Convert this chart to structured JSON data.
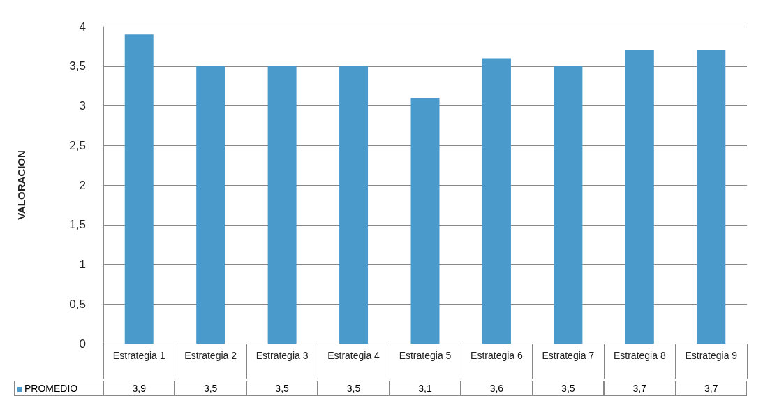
{
  "chart_data": {
    "type": "bar",
    "ylabel": "VALORACION",
    "categories": [
      "Estrategia 1",
      "Estrategia 2",
      "Estrategia 3",
      "Estrategia 4",
      "Estrategia 5",
      "Estrategia 6",
      "Estrategia 7",
      "Estrategia 8",
      "Estrategia 9"
    ],
    "series": [
      {
        "name": "PROMEDIO",
        "color": "#4a9acb",
        "values": [
          3.9,
          3.5,
          3.5,
          3.5,
          3.1,
          3.6,
          3.5,
          3.7,
          3.7
        ],
        "value_labels": [
          "3,9",
          "3,5",
          "3,5",
          "3,5",
          "3,1",
          "3,6",
          "3,5",
          "3,7",
          "3,7"
        ]
      }
    ],
    "ylim": [
      0,
      4
    ],
    "yticks": [
      0,
      {
        "value": 0.5,
        "label": "0,5"
      },
      1,
      {
        "value": 1.5,
        "label": "1,5"
      },
      2,
      {
        "value": 2.5,
        "label": "2,5"
      },
      3,
      {
        "value": 3.5,
        "label": "3,5"
      },
      4
    ],
    "grid": "y",
    "legend": "bottom left"
  }
}
